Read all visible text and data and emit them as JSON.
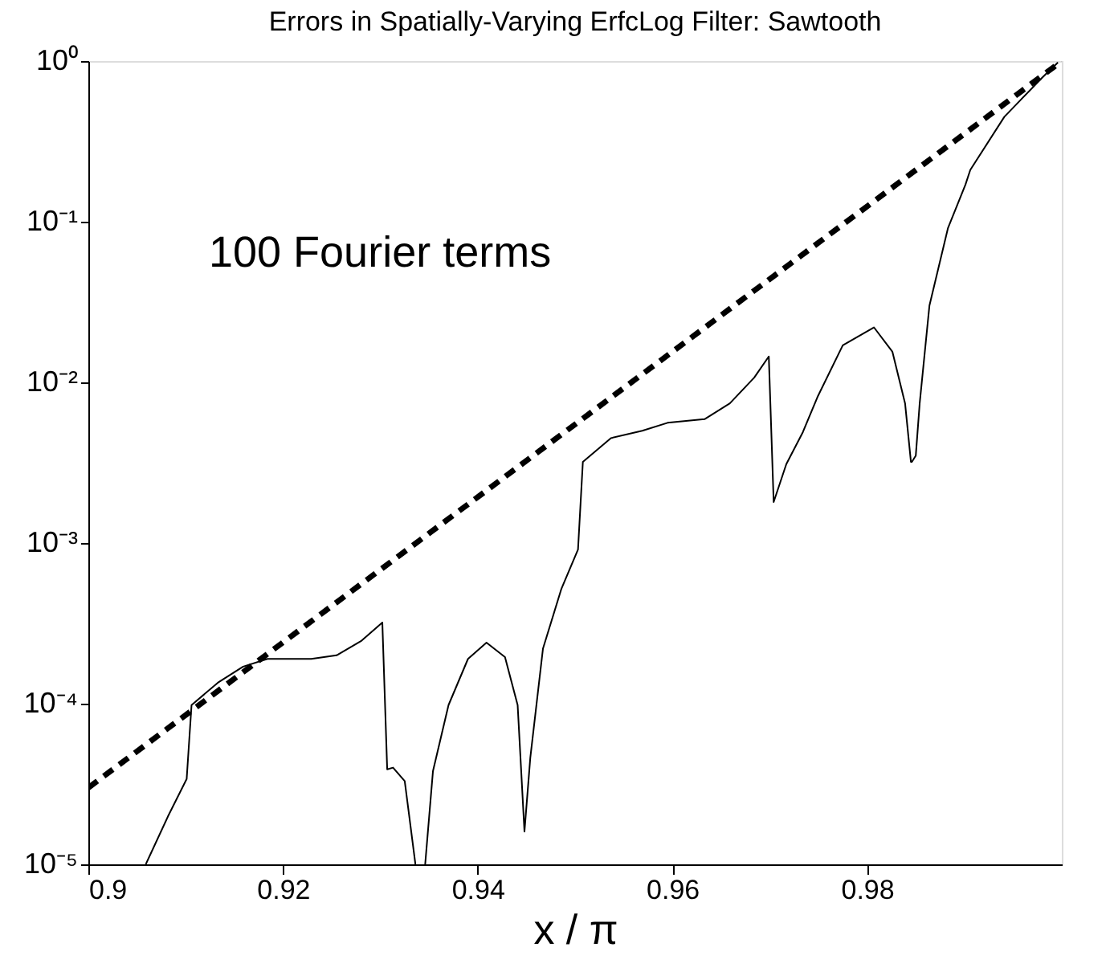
{
  "chart_data": {
    "type": "line",
    "title": "Errors in Spatially-Varying ErfcLog Filter: Sawtooth",
    "xlabel": "x / π",
    "log": "y",
    "xlim": [
      0.9,
      1.0
    ],
    "xticks": [
      0.9,
      0.92,
      0.94,
      0.96,
      0.98
    ],
    "ylim": [
      1e-05,
      1
    ],
    "yticks": [
      {
        "value": 1e-05,
        "label": "10⁻⁵"
      },
      {
        "value": 0.0001,
        "label": "10⁻⁴"
      },
      {
        "value": 0.001,
        "label": "10⁻³"
      },
      {
        "value": 0.01,
        "label": "10⁻²"
      },
      {
        "value": 0.1,
        "label": "10⁻¹"
      },
      {
        "value": 1,
        "label": "10⁰"
      }
    ],
    "grid": false,
    "marker": "none",
    "annotations": [
      "100 Fourier terms"
    ],
    "series": [
      {
        "color": "#000000",
        "line_style": "solid",
        "x": [
          0.9059,
          0.9082,
          0.9101,
          0.9106,
          0.9133,
          0.9159,
          0.9184,
          0.9229,
          0.9255,
          0.928,
          0.9302,
          0.9307,
          0.9313,
          0.9325,
          0.9336,
          0.934,
          0.9346,
          0.9354,
          0.937,
          0.939,
          0.9409,
          0.9428,
          0.9441,
          0.9448,
          0.9454,
          0.9467,
          0.9486,
          0.9503,
          0.9508,
          0.9537,
          0.9569,
          0.9595,
          0.9633,
          0.9659,
          0.9684,
          0.9699,
          0.9704,
          0.9717,
          0.9734,
          0.9749,
          0.9775,
          0.9807,
          0.9826,
          0.9839,
          0.9845,
          0.9846,
          0.985,
          0.9854,
          0.9864,
          0.9883,
          0.9901,
          0.9906,
          0.9941,
          0.998,
          0.9996
        ],
        "values": [
          1e-05,
          2e-05,
          3.4e-05,
          9.8e-05,
          0.000135,
          0.00017,
          0.00019,
          0.00019,
          0.0002,
          0.000245,
          0.00032,
          3.9e-05,
          4e-05,
          3.3e-05,
          1e-05,
          null,
          1e-05,
          3.8e-05,
          9.8e-05,
          0.00019,
          0.00024,
          0.000195,
          9.8e-05,
          1.6e-05,
          4.6e-05,
          0.00022,
          0.00052,
          0.00091,
          0.0032,
          0.0045,
          0.005,
          0.0056,
          0.0059,
          0.0074,
          0.0107,
          0.0145,
          0.0018,
          0.0031,
          0.0049,
          0.0081,
          0.017,
          0.022,
          0.0155,
          0.0074,
          0.0032,
          0.0032,
          0.0035,
          0.0074,
          0.03,
          0.091,
          0.17,
          0.21,
          0.45,
          0.79,
          0.98
        ]
      },
      {
        "color": "#000000",
        "line_style": "dashed",
        "x": [
          0.9,
          1.0
        ],
        "values": [
          3e-05,
          1
        ]
      }
    ]
  }
}
